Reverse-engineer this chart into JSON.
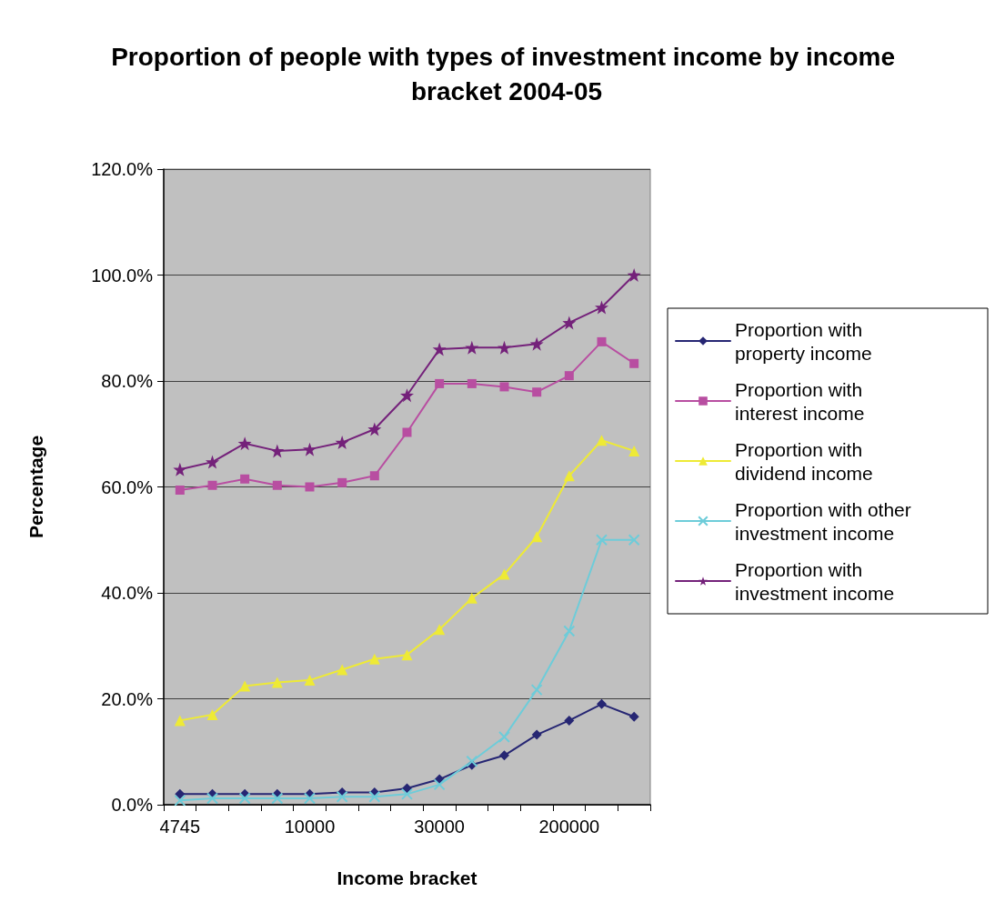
{
  "chart_data": {
    "type": "line",
    "title": "Proportion of people with types of investment income by income bracket 2004-05",
    "xlabel": "Income bracket",
    "ylabel": "Percentage",
    "categories": [
      "4745",
      null,
      null,
      null,
      "10000",
      null,
      null,
      null,
      "30000",
      null,
      null,
      null,
      "200000",
      null,
      null
    ],
    "series": [
      {
        "name": "Proportion with property income",
        "color": "#262673",
        "marker": "diamond",
        "values": [
          2.0,
          2.0,
          2.0,
          2.0,
          2.0,
          2.3,
          2.3,
          3.1,
          4.8,
          7.5,
          9.3,
          13.2,
          15.9,
          19.0,
          16.6
        ]
      },
      {
        "name": "Proportion with interest income",
        "color": "#b84ea1",
        "marker": "square",
        "values": [
          59.4,
          60.3,
          61.5,
          60.3,
          60.0,
          60.8,
          62.1,
          70.3,
          79.5,
          79.5,
          78.9,
          77.9,
          81.0,
          87.4,
          83.3
        ]
      },
      {
        "name": "Proportion with dividend income",
        "color": "#eeea35",
        "marker": "triangle",
        "values": [
          15.9,
          17.0,
          22.4,
          23.1,
          23.5,
          25.5,
          27.5,
          28.3,
          33.1,
          39.0,
          43.5,
          50.6,
          62.1,
          68.8,
          66.8
        ]
      },
      {
        "name": "Proportion with other investment income",
        "color": "#6dccd9",
        "marker": "cross",
        "values": [
          0.8,
          1.2,
          1.2,
          1.2,
          1.2,
          1.5,
          1.5,
          2.0,
          3.8,
          8.2,
          12.8,
          21.7,
          32.8,
          50.0,
          50.0
        ]
      },
      {
        "name": "Proportion with investment income",
        "color": "#74217a",
        "marker": "star",
        "values": [
          63.3,
          64.7,
          68.2,
          66.8,
          67.1,
          68.4,
          70.9,
          77.3,
          86.0,
          86.3,
          86.3,
          87.0,
          91.0,
          93.9,
          100.0
        ]
      }
    ],
    "ylim": [
      0,
      120
    ],
    "yticks": [
      {
        "value": 0,
        "label": "0.0%"
      },
      {
        "value": 20,
        "label": "20.0%"
      },
      {
        "value": 40,
        "label": "40.0%"
      },
      {
        "value": 60,
        "label": "60.0%"
      },
      {
        "value": 80,
        "label": "80.0%"
      },
      {
        "value": 100,
        "label": "100.0%"
      },
      {
        "value": 120,
        "label": "120.0%"
      }
    ],
    "grid": "y",
    "legend": "right",
    "line_style": "solid"
  }
}
